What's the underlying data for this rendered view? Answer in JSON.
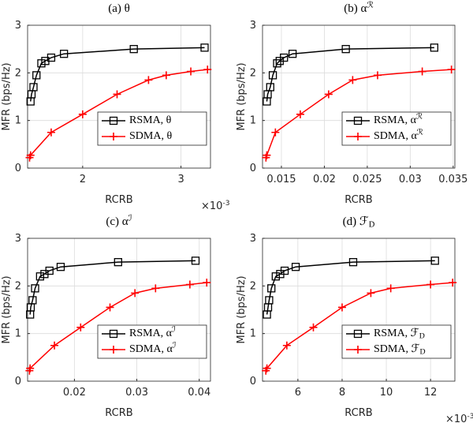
{
  "chart_data": [
    {
      "type": "line",
      "title": "(a) θ",
      "xlabel": "RCRB",
      "ylabel": "MFR (bps/Hz)",
      "x_multiplier": "×10^{-3}",
      "xlim": [
        1.44,
        3.3
      ],
      "xticks": [
        2,
        3
      ],
      "ylim": [
        0,
        3
      ],
      "yticks": [
        0,
        1,
        2,
        3
      ],
      "grid": true,
      "legend": "lower right",
      "series": [
        {
          "name": "RSMA, θ",
          "color": "#000000",
          "marker": "square",
          "x": [
            1.47,
            1.48,
            1.5,
            1.53,
            1.58,
            1.62,
            1.68,
            1.81,
            2.52,
            3.24
          ],
          "values": [
            1.4,
            1.55,
            1.7,
            1.95,
            2.2,
            2.25,
            2.32,
            2.4,
            2.5,
            2.53
          ]
        },
        {
          "name": "SDMA, θ",
          "color": "#ff0000",
          "marker": "plus",
          "x": [
            1.46,
            1.47,
            1.68,
            2.0,
            2.35,
            2.67,
            2.85,
            3.1,
            3.27
          ],
          "values": [
            0.22,
            0.27,
            0.75,
            1.13,
            1.55,
            1.85,
            1.95,
            2.03,
            2.07
          ]
        }
      ]
    },
    {
      "type": "line",
      "title": "(b) α^{ℛ}",
      "xlabel": "RCRB",
      "ylabel": "MFR (bps/Hz)",
      "xlim": [
        0.0128,
        0.0352
      ],
      "xticks": [
        0.015,
        0.02,
        0.025,
        0.03,
        0.035
      ],
      "ylim": [
        0,
        3
      ],
      "yticks": [
        0,
        1,
        2,
        3
      ],
      "grid": true,
      "legend": "lower right",
      "series": [
        {
          "name": "RSMA, α^{ℛ}",
          "color": "#000000",
          "marker": "square",
          "x": [
            0.0133,
            0.0134,
            0.0137,
            0.014,
            0.0145,
            0.0148,
            0.0153,
            0.0163,
            0.0225,
            0.0328
          ],
          "values": [
            1.4,
            1.55,
            1.7,
            1.95,
            2.2,
            2.25,
            2.32,
            2.4,
            2.5,
            2.53
          ]
        },
        {
          "name": "SDMA, α^{ℛ}",
          "color": "#ff0000",
          "marker": "plus",
          "x": [
            0.0132,
            0.0133,
            0.0143,
            0.0172,
            0.0205,
            0.0233,
            0.0262,
            0.0314,
            0.0348
          ],
          "values": [
            0.22,
            0.27,
            0.75,
            1.13,
            1.55,
            1.85,
            1.95,
            2.03,
            2.07
          ]
        }
      ]
    },
    {
      "type": "line",
      "title": "(c) α^{ℐ}",
      "xlabel": "RCRB",
      "ylabel": "MFR (bps/Hz)",
      "xlim": [
        0.0125,
        0.0418
      ],
      "xticks": [
        0.02,
        0.03,
        0.04
      ],
      "ylim": [
        0,
        3
      ],
      "yticks": [
        0,
        1,
        2,
        3
      ],
      "grid": true,
      "legend": "lower right",
      "series": [
        {
          "name": "RSMA, α^{ℐ}",
          "color": "#000000",
          "marker": "square",
          "x": [
            0.0129,
            0.013,
            0.0133,
            0.0137,
            0.0145,
            0.0152,
            0.016,
            0.0178,
            0.027,
            0.0394
          ],
          "values": [
            1.4,
            1.55,
            1.7,
            1.95,
            2.2,
            2.25,
            2.32,
            2.4,
            2.5,
            2.53
          ]
        },
        {
          "name": "SDMA, α^{ℐ}",
          "color": "#ff0000",
          "marker": "plus",
          "x": [
            0.0128,
            0.0129,
            0.0168,
            0.021,
            0.0257,
            0.0297,
            0.033,
            0.0385,
            0.0412
          ],
          "values": [
            0.22,
            0.27,
            0.75,
            1.13,
            1.55,
            1.85,
            1.95,
            2.03,
            2.07
          ]
        }
      ]
    },
    {
      "type": "line",
      "title": "(d) ℱ_{D}",
      "xlabel": "RCRB",
      "ylabel": "MFR (bps/Hz)",
      "x_multiplier": "×10^{-3}",
      "xlim": [
        4.4,
        13.1
      ],
      "xticks": [
        6,
        8,
        10,
        12
      ],
      "ylim": [
        0,
        3
      ],
      "yticks": [
        0,
        1,
        2,
        3
      ],
      "grid": true,
      "legend": "lower right",
      "series": [
        {
          "name": "RSMA, ℱ_{D}",
          "color": "#000000",
          "marker": "square",
          "x": [
            4.6,
            4.65,
            4.7,
            4.8,
            5.0,
            5.2,
            5.4,
            5.9,
            8.5,
            12.2
          ],
          "values": [
            1.4,
            1.55,
            1.7,
            1.95,
            2.2,
            2.25,
            2.32,
            2.4,
            2.5,
            2.53
          ]
        },
        {
          "name": "SDMA, ℱ_{D}",
          "color": "#ff0000",
          "marker": "plus",
          "x": [
            4.55,
            4.6,
            5.5,
            6.7,
            8.0,
            9.3,
            10.2,
            12.0,
            13.0
          ],
          "values": [
            0.22,
            0.27,
            0.75,
            1.13,
            1.55,
            1.85,
            1.95,
            2.03,
            2.07
          ]
        }
      ]
    }
  ]
}
